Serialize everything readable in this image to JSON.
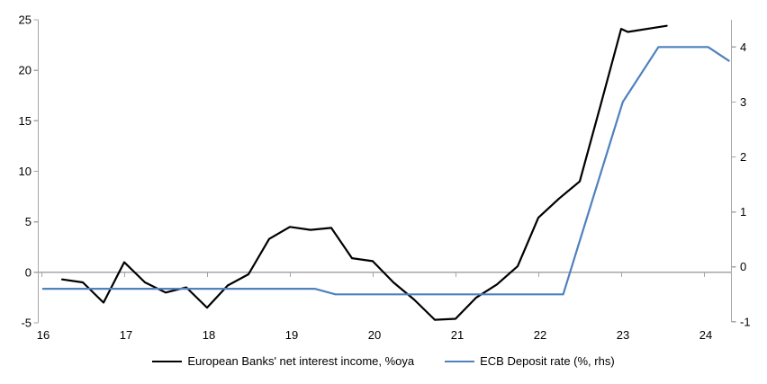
{
  "chart_data": {
    "type": "line",
    "title": "",
    "x_axis": {
      "tick_years": [
        16,
        17,
        18,
        19,
        20,
        21,
        22,
        23,
        24
      ],
      "tick_labels": [
        "16",
        "17",
        "18",
        "19",
        "20",
        "21",
        "22",
        "23",
        "24"
      ],
      "range": [
        16,
        24.35
      ]
    },
    "left_axis": {
      "tick_values": [
        25,
        20,
        15,
        10,
        5,
        0,
        -5
      ],
      "tick_labels": [
        "25",
        "20",
        "15",
        "10",
        "5",
        "0",
        "-5"
      ],
      "range": [
        -5,
        25
      ]
    },
    "right_axis": {
      "tick_values": [
        4,
        3,
        2,
        1,
        0,
        -1
      ],
      "tick_labels": [
        "4",
        "3",
        "2",
        "1",
        "0",
        "-1"
      ],
      "range": [
        -1,
        4.5
      ]
    },
    "zero_gridline": true,
    "grid": "off",
    "legend_position": "bottom",
    "series": [
      {
        "name": "European Banks' net interest income, %oya",
        "axis": "left",
        "color": "#000000",
        "points": [
          [
            16.25,
            -0.7
          ],
          [
            16.5,
            -1.0
          ],
          [
            16.75,
            -3.0
          ],
          [
            17.0,
            1.0
          ],
          [
            17.25,
            -1.0
          ],
          [
            17.5,
            -2.0
          ],
          [
            17.75,
            -1.5
          ],
          [
            18.0,
            -3.5
          ],
          [
            18.25,
            -1.3
          ],
          [
            18.5,
            -0.2
          ],
          [
            18.75,
            3.3
          ],
          [
            19.0,
            4.5
          ],
          [
            19.25,
            4.2
          ],
          [
            19.5,
            4.4
          ],
          [
            19.75,
            1.4
          ],
          [
            20.0,
            1.1
          ],
          [
            20.25,
            -1.0
          ],
          [
            20.5,
            -2.7
          ],
          [
            20.75,
            -4.7
          ],
          [
            21.0,
            -4.6
          ],
          [
            21.25,
            -2.5
          ],
          [
            21.5,
            -1.2
          ],
          [
            21.75,
            0.6
          ],
          [
            22.0,
            5.4
          ],
          [
            22.25,
            7.3
          ],
          [
            22.5,
            9.0
          ],
          [
            22.75,
            16.5
          ],
          [
            23.0,
            24.1
          ],
          [
            23.08,
            23.8
          ],
          [
            23.55,
            24.4
          ]
        ]
      },
      {
        "name": "ECB Deposit rate (%, rhs)",
        "axis": "right",
        "color": "#4f81bd",
        "points": [
          [
            16.02,
            -0.4
          ],
          [
            19.3,
            -0.4
          ],
          [
            19.55,
            -0.5
          ],
          [
            22.3,
            -0.5
          ],
          [
            23.02,
            3.0
          ],
          [
            23.45,
            4.0
          ],
          [
            24.05,
            4.0
          ],
          [
            24.3,
            3.75
          ]
        ]
      }
    ]
  },
  "colors": {
    "axis": "#a6a6a6",
    "text": "#000000",
    "background": "#ffffff"
  }
}
